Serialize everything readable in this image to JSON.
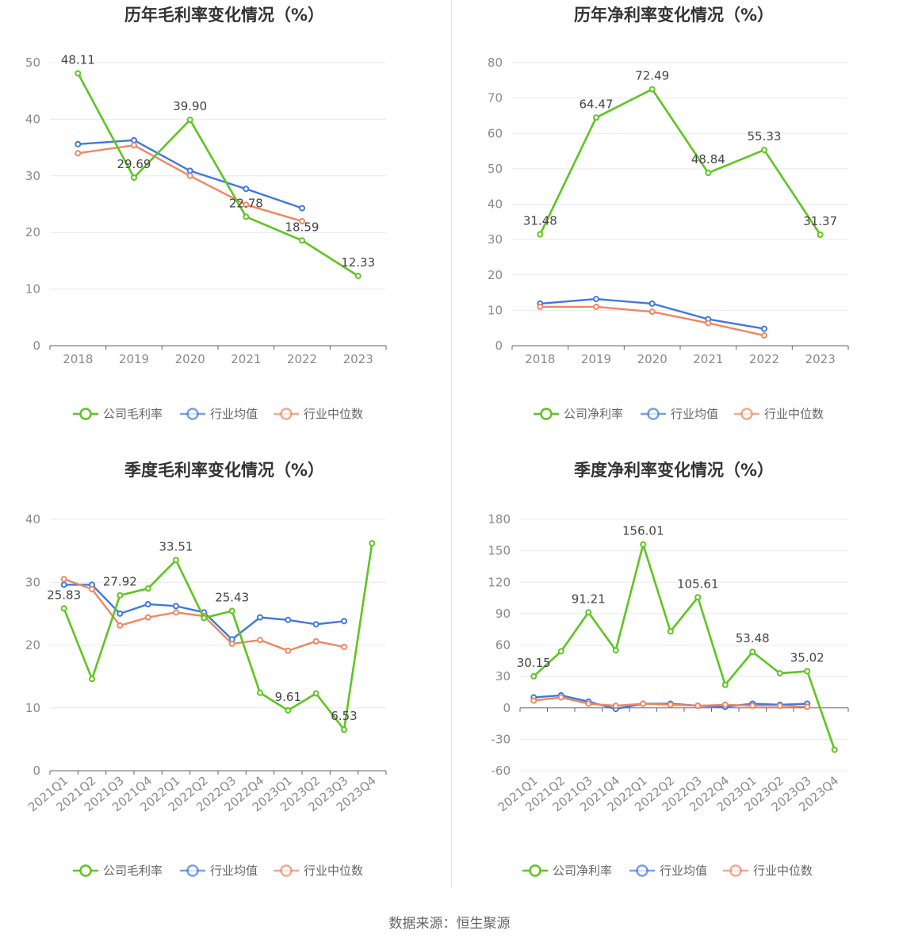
{
  "source": "数据来源：恒生聚源",
  "colors": {
    "company": "#5ec520",
    "avg": "#3f78dd",
    "median": "#f08660"
  },
  "charts": [
    {
      "type": "line",
      "title": "历年毛利率变化情况（%）",
      "categories": [
        "2018",
        "2019",
        "2020",
        "2021",
        "2022",
        "2023"
      ],
      "ylim": [
        0,
        50
      ],
      "yticks": [
        0,
        10,
        20,
        30,
        40,
        50
      ],
      "legend": [
        "公司毛利率",
        "行业均值",
        "行业中位数"
      ],
      "series": [
        {
          "name": "公司毛利率",
          "values": [
            48.11,
            29.69,
            39.9,
            22.78,
            18.59,
            12.33
          ],
          "labels": [
            "48.11",
            "29.69",
            "39.90",
            "22.78",
            "18.59",
            "12.33"
          ]
        },
        {
          "name": "行业均值",
          "values": [
            35.6,
            36.3,
            30.9,
            27.7,
            24.3,
            null
          ]
        },
        {
          "name": "行业中位数",
          "values": [
            34.0,
            35.4,
            30.0,
            24.9,
            22.0,
            null
          ]
        }
      ]
    },
    {
      "type": "line",
      "title": "历年净利率变化情况（%）",
      "categories": [
        "2018",
        "2019",
        "2020",
        "2021",
        "2022",
        "2023"
      ],
      "ylim": [
        0,
        80
      ],
      "yticks": [
        0,
        10,
        20,
        30,
        40,
        50,
        60,
        70,
        80
      ],
      "legend": [
        "公司净利率",
        "行业均值",
        "行业中位数"
      ],
      "series": [
        {
          "name": "公司净利率",
          "values": [
            31.48,
            64.47,
            72.49,
            48.84,
            55.33,
            31.37
          ],
          "labels": [
            "31.48",
            "64.47",
            "72.49",
            "48.84",
            "55.33",
            "31.37"
          ]
        },
        {
          "name": "行业均值",
          "values": [
            11.9,
            13.2,
            11.9,
            7.5,
            4.8,
            null
          ]
        },
        {
          "name": "行业中位数",
          "values": [
            11.0,
            11.0,
            9.6,
            6.4,
            2.9,
            null
          ]
        }
      ]
    },
    {
      "type": "line",
      "title": "季度毛利率变化情况（%）",
      "categories": [
        "2021Q1",
        "2021Q2",
        "2021Q3",
        "2021Q4",
        "2022Q1",
        "2022Q2",
        "2022Q3",
        "2022Q4",
        "2023Q1",
        "2023Q2",
        "2023Q3",
        "2023Q4"
      ],
      "ylim": [
        0,
        40
      ],
      "yticks": [
        0,
        10,
        20,
        30,
        40
      ],
      "legend": [
        "公司毛利率",
        "行业均值",
        "行业中位数"
      ],
      "series": [
        {
          "name": "公司毛利率",
          "values": [
            25.83,
            14.6,
            27.92,
            29.0,
            33.51,
            24.3,
            25.43,
            12.4,
            9.61,
            12.3,
            6.53,
            36.2
          ],
          "labels": [
            "25.83",
            "",
            "27.92",
            "",
            "33.51",
            "",
            "25.43",
            "",
            "9.61",
            "",
            "6.53",
            ""
          ]
        },
        {
          "name": "行业均值",
          "values": [
            29.6,
            29.6,
            25.0,
            26.5,
            26.2,
            25.2,
            20.9,
            24.4,
            24.0,
            23.3,
            23.8,
            null
          ]
        },
        {
          "name": "行业中位数",
          "values": [
            30.5,
            28.9,
            23.1,
            24.4,
            25.2,
            24.6,
            20.2,
            20.8,
            19.1,
            20.6,
            19.7,
            null
          ]
        }
      ]
    },
    {
      "type": "line",
      "title": "季度净利率变化情况（%）",
      "categories": [
        "2021Q1",
        "2021Q2",
        "2021Q3",
        "2021Q4",
        "2022Q1",
        "2022Q2",
        "2022Q3",
        "2022Q4",
        "2023Q1",
        "2023Q2",
        "2023Q3",
        "2023Q4"
      ],
      "ylim": [
        -60,
        180
      ],
      "yticks": [
        -60,
        -30,
        0,
        30,
        60,
        90,
        120,
        150,
        180
      ],
      "legend": [
        "公司净利率",
        "行业均值",
        "行业中位数"
      ],
      "series": [
        {
          "name": "公司净利率",
          "values": [
            30.15,
            54.0,
            91.21,
            55.0,
            156.01,
            73.0,
            105.61,
            22.0,
            53.48,
            33.0,
            35.02,
            -40.0
          ],
          "labels": [
            "30.15",
            "",
            "91.21",
            "",
            "156.01",
            "",
            "105.61",
            "",
            "53.48",
            "",
            "35.02",
            ""
          ]
        },
        {
          "name": "行业均值",
          "values": [
            10.0,
            12.0,
            6.0,
            -1.0,
            4.0,
            4.0,
            2.0,
            1.0,
            4.0,
            3.0,
            4.0,
            null
          ]
        },
        {
          "name": "行业中位数",
          "values": [
            7.0,
            10.0,
            4.0,
            2.0,
            4.0,
            3.0,
            2.0,
            3.0,
            2.0,
            2.0,
            1.0,
            null
          ]
        }
      ]
    }
  ]
}
